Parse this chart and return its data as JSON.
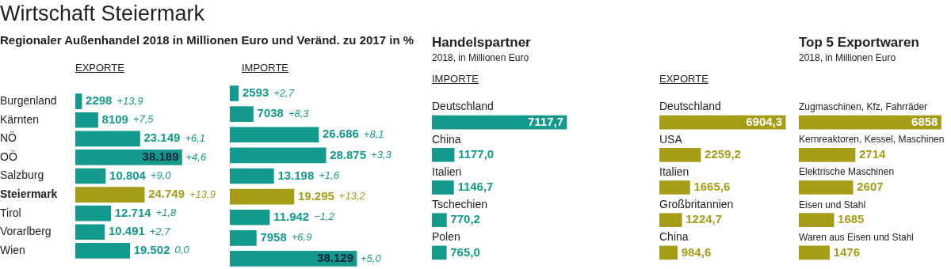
{
  "chart_data": [
    {
      "type": "bar",
      "orientation": "horizontal",
      "title": "Wirtschaft Steiermark",
      "subtitle": "Regionaler Außenhandel 2018 in Millionen Euro und Veränd. zu 2017 in %",
      "xlabel": "EXPORTE",
      "tick_labels": "y",
      "categories": [
        "Burgenland",
        "Kärnten",
        "NÖ",
        "OÖ",
        "Salzburg",
        "Steiermark",
        "Tirol",
        "Vorarlberg",
        "Wien"
      ],
      "values": [
        2298,
        8109,
        23149,
        38189,
        10804,
        24749,
        12714,
        10491,
        19502
      ],
      "value_labels": [
        "2298",
        "8109",
        "23.149",
        "38.189",
        "10.804",
        "24.749",
        "12.714",
        "10.491",
        "19.502"
      ],
      "colors": [
        "#139a8d",
        "#139a8d",
        "#139a8d",
        "#139a8d",
        "#139a8d",
        "#a59c17",
        "#139a8d",
        "#139a8d",
        "#139a8d"
      ],
      "annotations": [
        "+13,9",
        "+7,5",
        "+6,1",
        "+4,6",
        "+9,0",
        "+13,9",
        "+1,8",
        "+2,7",
        "0,0"
      ]
    },
    {
      "type": "bar",
      "orientation": "horizontal",
      "xlabel": "IMPORTE",
      "tick_labels": false,
      "categories": [
        null,
        null,
        null,
        null,
        null,
        null,
        null,
        null,
        null
      ],
      "values": [
        2593,
        7038,
        26686,
        28875,
        13198,
        19295,
        11942,
        7958,
        38129
      ],
      "value_labels": [
        "2593",
        "7038",
        "26.686",
        "28.875",
        "13.198",
        "19.295",
        "11.942",
        "7958",
        "38.129"
      ],
      "colors": [
        "#139a8d",
        "#139a8d",
        "#139a8d",
        "#139a8d",
        "#139a8d",
        "#a59c17",
        "#139a8d",
        "#139a8d",
        "#139a8d"
      ],
      "annotations": [
        "+2,7",
        "+8,3",
        "+8,1",
        "+3,3",
        "+1,6",
        "+13,2",
        "−1,2",
        "+6,9",
        "+5,0"
      ]
    },
    {
      "type": "bar",
      "orientation": "horizontal",
      "title": "Handelspartner",
      "subtitle": "2018, in Millionen Euro",
      "xlabel": "IMPORTE",
      "tick_labels": "y",
      "categories": [
        "Deutschland",
        "China",
        "Italien",
        "Tschechien",
        "Polen"
      ],
      "values": [
        7117.7,
        1177.0,
        1146.7,
        770.2,
        765.0
      ],
      "value_labels": [
        "7117,7",
        "1177,0",
        "1146,7",
        "770,2",
        "765,0"
      ],
      "color": "#139a8d"
    },
    {
      "type": "bar",
      "orientation": "horizontal",
      "xlabel": "EXPORTE",
      "tick_labels": "y",
      "categories": [
        "Deutschland",
        "USA",
        "Italien",
        "Großbritannien",
        "China"
      ],
      "values": [
        6904.3,
        2259.2,
        1665.6,
        1224.7,
        984.6
      ],
      "value_labels": [
        "6904,3",
        "2259,2",
        "1665,6",
        "1224,7",
        "984,6"
      ],
      "color": "#a59c17"
    },
    {
      "type": "bar",
      "orientation": "horizontal",
      "title": "Top 5 Exportwaren",
      "subtitle": "2018, in Millionen Euro",
      "tick_labels": "y",
      "categories": [
        "Zugmaschinen, Kfz, Fahrräder",
        "Kernreaktoren, Kessel, Maschinen",
        "Elektrische Maschinen",
        "Eisen und Stahl",
        "Waren aus Eisen und Stahl"
      ],
      "values": [
        6858,
        2714,
        2607,
        1685,
        1476
      ],
      "value_labels": [
        "6858",
        "2714",
        "2607",
        "1685",
        "1476"
      ],
      "color": "#a59c17"
    }
  ]
}
